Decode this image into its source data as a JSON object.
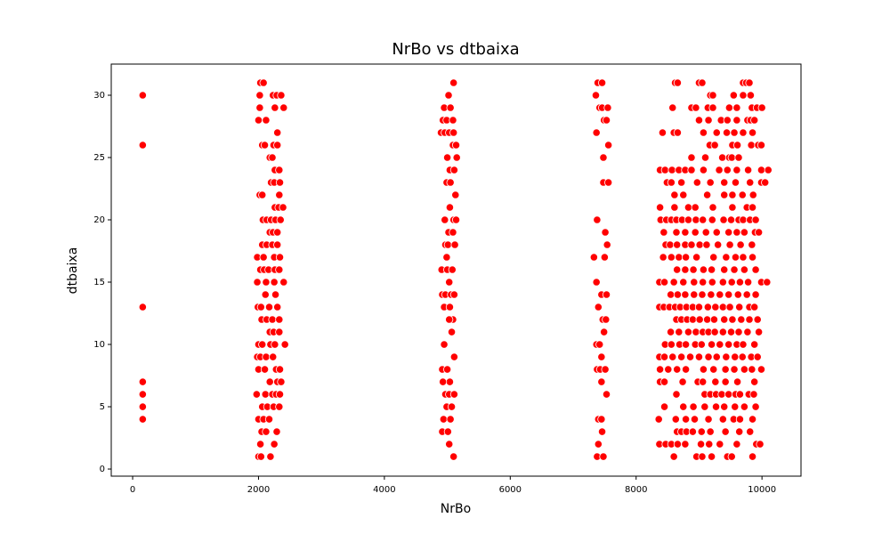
{
  "chart_data": {
    "type": "scatter",
    "title": "NrBo vs dtbaixa",
    "x_label": "NrBo",
    "y_label": "dtbaixa",
    "color": "#ff0000",
    "xlim": [
      -340,
      10620
    ],
    "ylim": [
      -0.57,
      32.5
    ],
    "xticks": [
      0,
      2000,
      4000,
      6000,
      8000,
      10000
    ],
    "yticks": [
      0,
      5,
      10,
      15,
      20,
      25,
      30
    ],
    "grid": false,
    "x": [
      160,
      160,
      160,
      160,
      160,
      160,
      160,
      2030,
      2080,
      2020,
      2230,
      2290,
      2360,
      2020,
      2260,
      2400,
      2000,
      2120,
      2300,
      2060,
      2100,
      2240,
      2300,
      2180,
      2220,
      2260,
      2330,
      2200,
      2250,
      2340,
      2020,
      2060,
      2330,
      2260,
      2320,
      2390,
      2070,
      2130,
      2200,
      2270,
      2350,
      2180,
      2230,
      2300,
      2060,
      2130,
      2220,
      2300,
      1980,
      2080,
      2250,
      2340,
      2030,
      2090,
      2160,
      2260,
      2330,
      1980,
      2120,
      2250,
      2400,
      2110,
      2270,
      1990,
      2040,
      2170,
      2300,
      2050,
      2130,
      2220,
      2330,
      2180,
      2240,
      2330,
      2000,
      2060,
      2190,
      2260,
      2420,
      1980,
      2030,
      2120,
      2230,
      2000,
      2100,
      2280,
      2340,
      2180,
      2300,
      2360,
      1970,
      2110,
      2220,
      2280,
      2340,
      2060,
      2140,
      2240,
      2330,
      2000,
      2080,
      2170,
      2050,
      2120,
      2290,
      2030,
      2250,
      2000,
      2040,
      2190,
      5100,
      5020,
      4950,
      5050,
      4930,
      4990,
      5090,
      4900,
      4960,
      5030,
      5100,
      5090,
      5140,
      5000,
      5150,
      5040,
      5110,
      4990,
      5050,
      5130,
      5040,
      4960,
      5100,
      5140,
      5020,
      5090,
      4970,
      5010,
      5120,
      4990,
      4910,
      5000,
      5080,
      5030,
      4920,
      4970,
      5060,
      5110,
      4950,
      5040,
      5090,
      5030,
      5070,
      4950,
      5110,
      4920,
      5000,
      5040,
      4930,
      4970,
      5030,
      5110,
      4990,
      5070,
      4940,
      5050,
      4920,
      5010,
      5030,
      5100,
      7390,
      7460,
      7360,
      7420,
      7460,
      7550,
      7490,
      7530,
      7370,
      7560,
      7480,
      7480,
      7560,
      7380,
      7510,
      7540,
      7330,
      7500,
      7370,
      7450,
      7530,
      7400,
      7470,
      7520,
      7490,
      7370,
      7420,
      7450,
      7380,
      7430,
      7510,
      7450,
      7530,
      7400,
      7450,
      7460,
      7400,
      7380,
      7480,
      8620,
      8660,
      9000,
      9050,
      9700,
      9750,
      9800,
      9180,
      9220,
      9550,
      9700,
      9820,
      8580,
      8880,
      8950,
      9140,
      9220,
      9480,
      9600,
      9840,
      9920,
      10000,
      9000,
      9150,
      9350,
      9450,
      9600,
      9770,
      9820,
      9880,
      8420,
      8600,
      8660,
      9070,
      9280,
      9440,
      9560,
      9700,
      9850,
      9170,
      9250,
      9530,
      9610,
      9830,
      9940,
      9990,
      8880,
      9100,
      9370,
      9480,
      9520,
      9630,
      8380,
      8460,
      8570,
      8680,
      8780,
      8880,
      9070,
      9320,
      9450,
      9600,
      9780,
      9990,
      10100,
      8490,
      8560,
      8720,
      8970,
      9180,
      9400,
      9580,
      9810,
      9990,
      10050,
      8610,
      8750,
      9130,
      9400,
      9530,
      9690,
      9860,
      8380,
      8610,
      8830,
      8940,
      9220,
      9530,
      9760,
      9850,
      8390,
      8480,
      8560,
      8640,
      8730,
      8830,
      8950,
      9060,
      9210,
      9390,
      9510,
      9630,
      9700,
      9810,
      9900,
      8440,
      8640,
      8780,
      8940,
      9110,
      9280,
      9470,
      9600,
      9720,
      9890,
      9950,
      8470,
      8540,
      8650,
      8780,
      8880,
      9010,
      9120,
      9300,
      9490,
      9660,
      9840,
      8430,
      8560,
      8680,
      8790,
      8960,
      9230,
      9430,
      9580,
      9700,
      9850,
      8650,
      8780,
      8910,
      9070,
      9200,
      9400,
      9560,
      9720,
      9900,
      8370,
      8450,
      8600,
      8750,
      8920,
      9060,
      9210,
      9380,
      9520,
      9650,
      9780,
      9990,
      10080,
      8550,
      8660,
      8780,
      8920,
      9050,
      9190,
      9330,
      9470,
      9620,
      9760,
      9900,
      8370,
      8440,
      8530,
      8620,
      8700,
      8800,
      8900,
      9000,
      9140,
      9260,
      9380,
      9490,
      9640,
      9800,
      9880,
      8640,
      8720,
      8810,
      8900,
      9010,
      9130,
      9240,
      9400,
      9530,
      9670,
      9800,
      9930,
      8550,
      8680,
      8830,
      8950,
      9060,
      9150,
      9250,
      9380,
      9510,
      9630,
      9770,
      9950,
      8460,
      8560,
      8690,
      8790,
      8940,
      9040,
      9200,
      9330,
      9470,
      9600,
      9700,
      9880,
      8370,
      8450,
      8580,
      8720,
      8860,
      9000,
      9150,
      9280,
      9430,
      9570,
      9690,
      9830,
      9930,
      8380,
      8510,
      8650,
      8790,
      9070,
      9230,
      9420,
      9560,
      9720,
      9840,
      9990,
      8380,
      8450,
      8740,
      8980,
      9060,
      9260,
      9420,
      9610,
      9880,
      8640,
      9090,
      9180,
      9270,
      9360,
      9470,
      9580,
      9650,
      9790,
      9870,
      8450,
      8750,
      8910,
      9090,
      9270,
      9400,
      9570,
      9720,
      9900,
      8360,
      8630,
      8790,
      8930,
      9150,
      9380,
      9550,
      9650,
      9850,
      8650,
      8720,
      8800,
      8900,
      9040,
      9180,
      9420,
      9640,
      9810,
      8370,
      8470,
      8560,
      8660,
      8780,
      9030,
      9160,
      9330,
      9600,
      9910,
      9970,
      8600,
      8960,
      9050,
      9200,
      9450,
      9520,
      9850
    ],
    "values": [
      30,
      26,
      13,
      7,
      6,
      5,
      4,
      31,
      31,
      30,
      30,
      30,
      30,
      29,
      29,
      29,
      28,
      28,
      27,
      26,
      26,
      26,
      26,
      25,
      25,
      24,
      24,
      23,
      23,
      23,
      22,
      22,
      22,
      21,
      21,
      21,
      20,
      20,
      20,
      20,
      20,
      19,
      19,
      19,
      18,
      18,
      18,
      18,
      17,
      17,
      17,
      17,
      16,
      16,
      16,
      16,
      16,
      15,
      15,
      15,
      15,
      14,
      14,
      13,
      13,
      13,
      13,
      12,
      12,
      12,
      12,
      11,
      11,
      11,
      10,
      10,
      10,
      10,
      10,
      9,
      9,
      9,
      9,
      8,
      8,
      8,
      8,
      7,
      7,
      7,
      6,
      6,
      6,
      6,
      6,
      5,
      5,
      5,
      5,
      4,
      4,
      4,
      3,
      3,
      3,
      2,
      2,
      1,
      1,
      1,
      31,
      30,
      29,
      29,
      28,
      28,
      28,
      27,
      27,
      27,
      27,
      26,
      26,
      25,
      25,
      24,
      24,
      23,
      23,
      22,
      21,
      20,
      20,
      20,
      19,
      19,
      18,
      18,
      18,
      17,
      16,
      16,
      16,
      15,
      14,
      14,
      14,
      14,
      13,
      13,
      12,
      12,
      11,
      10,
      9,
      8,
      8,
      7,
      7,
      6,
      6,
      6,
      5,
      5,
      4,
      4,
      3,
      3,
      2,
      1,
      31,
      31,
      30,
      29,
      29,
      29,
      28,
      28,
      27,
      26,
      25,
      23,
      23,
      20,
      19,
      18,
      17,
      17,
      15,
      14,
      14,
      13,
      12,
      12,
      11,
      10,
      10,
      9,
      8,
      8,
      8,
      7,
      6,
      4,
      4,
      3,
      2,
      1,
      1,
      31,
      31,
      31,
      31,
      31,
      31,
      31,
      30,
      30,
      30,
      30,
      30,
      29,
      29,
      29,
      29,
      29,
      29,
      29,
      29,
      29,
      29,
      28,
      28,
      28,
      28,
      28,
      28,
      28,
      28,
      27,
      27,
      27,
      27,
      27,
      27,
      27,
      27,
      27,
      26,
      26,
      26,
      26,
      26,
      26,
      26,
      25,
      25,
      25,
      25,
      25,
      25,
      24,
      24,
      24,
      24,
      24,
      24,
      24,
      24,
      24,
      24,
      24,
      24,
      24,
      23,
      23,
      23,
      23,
      23,
      23,
      23,
      23,
      23,
      23,
      22,
      22,
      22,
      22,
      22,
      22,
      22,
      21,
      21,
      21,
      21,
      21,
      21,
      21,
      21,
      20,
      20,
      20,
      20,
      20,
      20,
      20,
      20,
      20,
      20,
      20,
      20,
      20,
      20,
      20,
      19,
      19,
      19,
      19,
      19,
      19,
      19,
      19,
      19,
      19,
      19,
      18,
      18,
      18,
      18,
      18,
      18,
      18,
      18,
      18,
      18,
      18,
      17,
      17,
      17,
      17,
      17,
      17,
      17,
      17,
      17,
      17,
      16,
      16,
      16,
      16,
      16,
      16,
      16,
      16,
      16,
      15,
      15,
      15,
      15,
      15,
      15,
      15,
      15,
      15,
      15,
      15,
      15,
      15,
      14,
      14,
      14,
      14,
      14,
      14,
      14,
      14,
      14,
      14,
      14,
      13,
      13,
      13,
      13,
      13,
      13,
      13,
      13,
      13,
      13,
      13,
      13,
      13,
      13,
      13,
      12,
      12,
      12,
      12,
      12,
      12,
      12,
      12,
      12,
      12,
      12,
      12,
      11,
      11,
      11,
      11,
      11,
      11,
      11,
      11,
      11,
      11,
      11,
      11,
      10,
      10,
      10,
      10,
      10,
      10,
      10,
      10,
      10,
      10,
      10,
      10,
      9,
      9,
      9,
      9,
      9,
      9,
      9,
      9,
      9,
      9,
      9,
      9,
      9,
      8,
      8,
      8,
      8,
      8,
      8,
      8,
      8,
      8,
      8,
      8,
      7,
      7,
      7,
      7,
      7,
      7,
      7,
      7,
      7,
      6,
      6,
      6,
      6,
      6,
      6,
      6,
      6,
      6,
      6,
      5,
      5,
      5,
      5,
      5,
      5,
      5,
      5,
      5,
      4,
      4,
      4,
      4,
      4,
      4,
      4,
      4,
      4,
      3,
      3,
      3,
      3,
      3,
      3,
      3,
      3,
      3,
      2,
      2,
      2,
      2,
      2,
      2,
      2,
      2,
      2,
      2,
      2,
      1,
      1,
      1,
      1,
      1,
      1,
      1
    ]
  }
}
